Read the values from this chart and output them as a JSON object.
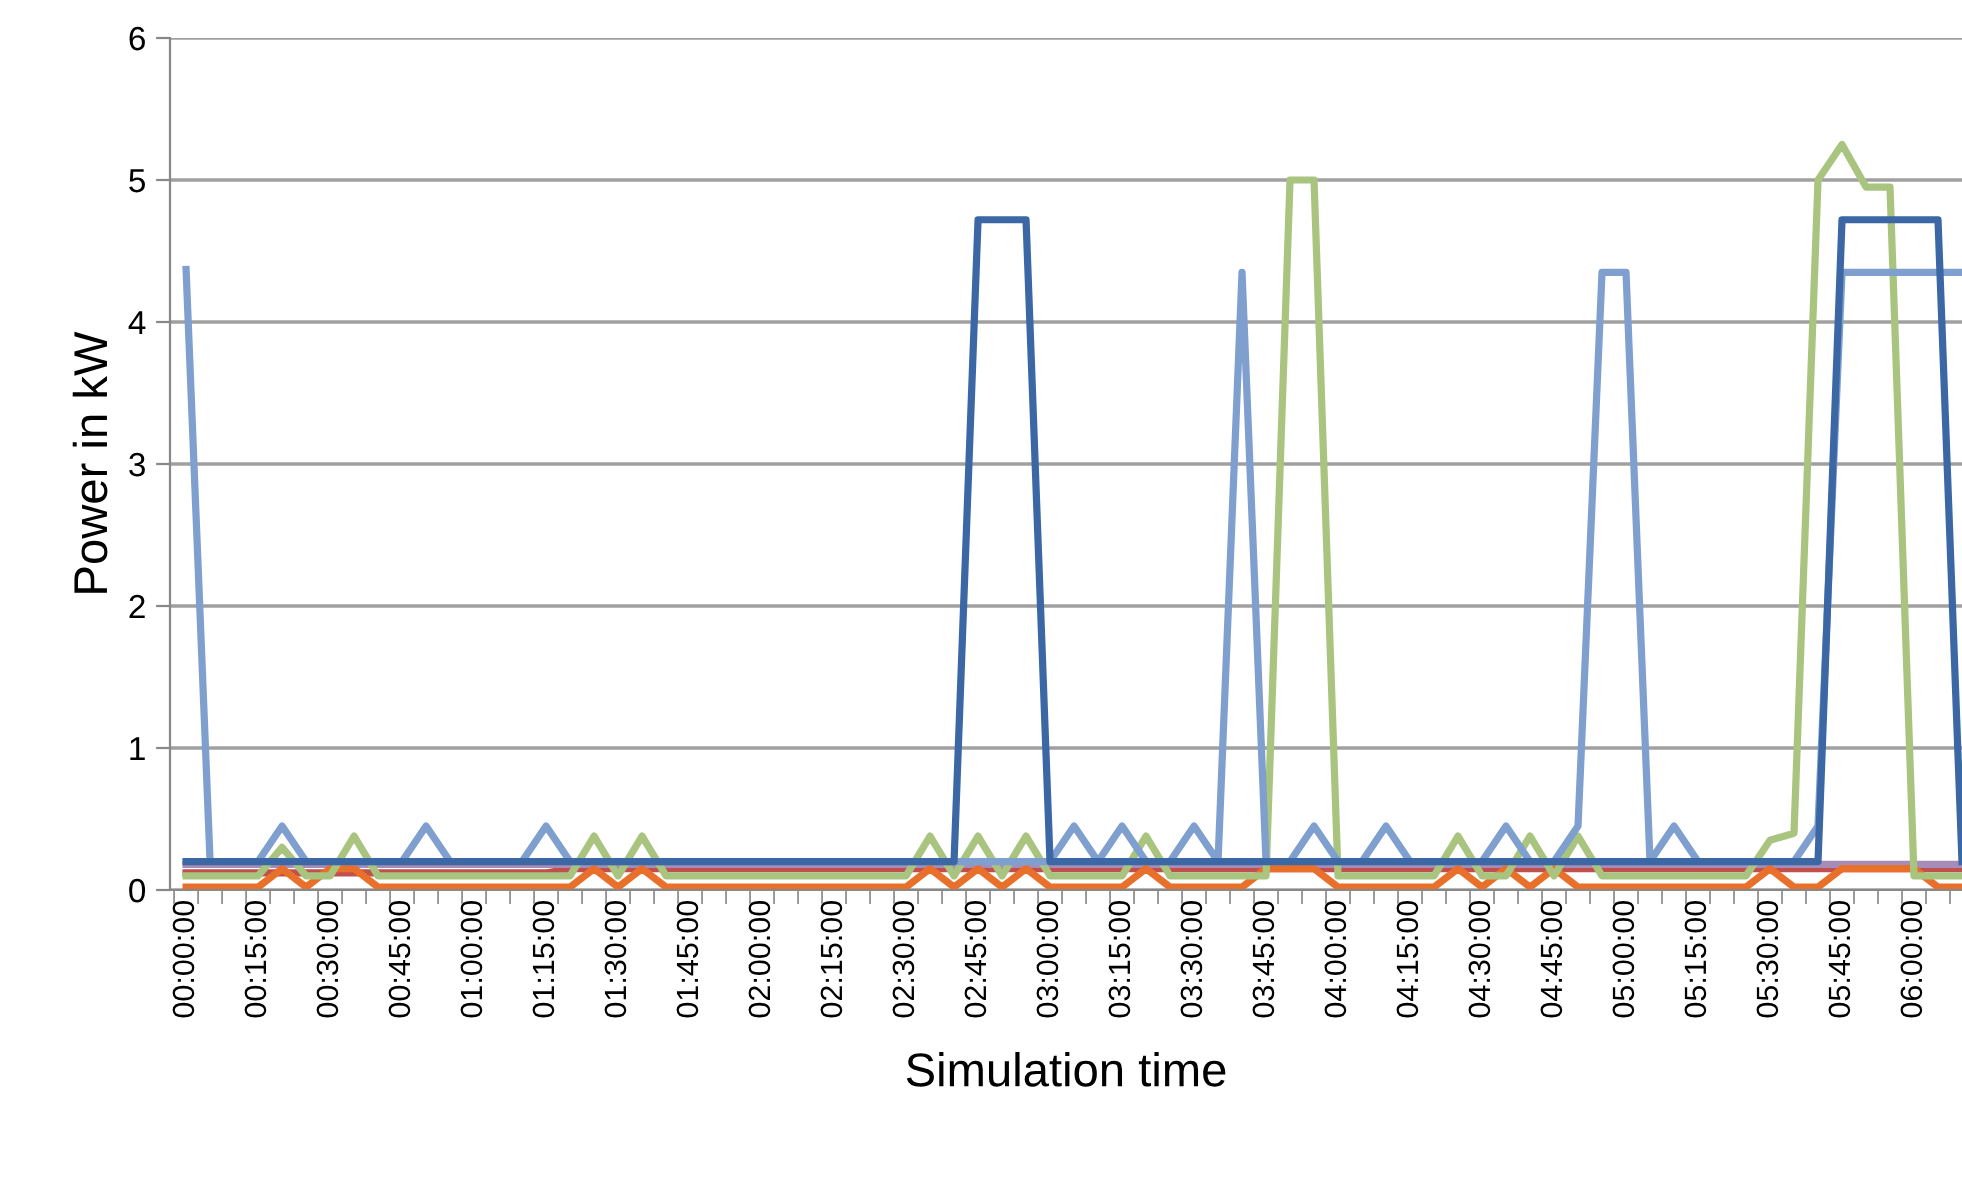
{
  "chart_data": {
    "type": "line",
    "xlabel": "Simulation time",
    "ylabel": "Power in kW",
    "categories": [
      "00:00:00",
      null,
      null,
      "00:15:00",
      null,
      null,
      "00:30:00",
      null,
      null,
      "00:45:00",
      null,
      null,
      "01:00:00",
      null,
      null,
      "01:15:00",
      null,
      null,
      "01:30:00",
      null,
      null,
      "01:45:00",
      null,
      null,
      "02:00:00",
      null,
      null,
      "02:15:00",
      null,
      null,
      "02:30:00",
      null,
      null,
      "02:45:00",
      null,
      null,
      "03:00:00",
      null,
      null,
      "03:15:00",
      null,
      null,
      "03:30:00",
      null,
      null,
      "03:45:00",
      null,
      null,
      "04:00:00",
      null,
      null,
      "04:15:00",
      null,
      null,
      "04:30:00",
      null,
      null,
      "04:45:00",
      null,
      null,
      "05:00:00",
      null,
      null,
      "05:15:00",
      null,
      null,
      "05:30:00",
      null,
      null,
      "05:45:00",
      null,
      null,
      "06:00:00",
      null,
      null
    ],
    "ylim": [
      0,
      6
    ],
    "yticks": [
      0,
      1,
      2,
      3,
      4,
      5,
      6
    ],
    "grid": "y",
    "marker": "none",
    "line_style": "solid",
    "series": [
      {
        "color": "#c0504d",
        "values": [
          0.12,
          0.12,
          0.12,
          0.12,
          0.12,
          0.12,
          0.12,
          0.12,
          0.12,
          0.12,
          0.12,
          0.12,
          0.12,
          0.12,
          0.12,
          0.12,
          0.15,
          0.15,
          0.15,
          0.15,
          0.15,
          0.15,
          0.15,
          0.15,
          0.15,
          0.15,
          0.15,
          0.15,
          0.15,
          0.15,
          0.15,
          0.15,
          0.15,
          0.15,
          0.15,
          0.15,
          0.15,
          0.15,
          0.15,
          0.15,
          0.15,
          0.15,
          0.15,
          0.15,
          0.15,
          0.15,
          0.15,
          0.15,
          0.15,
          0.15,
          0.15,
          0.15,
          0.15,
          0.15,
          0.15,
          0.15,
          0.15,
          0.15,
          0.15,
          0.15,
          0.15,
          0.15,
          0.15,
          0.15,
          0.15,
          0.15,
          0.15,
          0.15,
          0.15,
          0.15,
          0.15,
          0.15,
          0.15,
          0.15,
          0.15
        ]
      },
      {
        "color": "#a88cb8",
        "values": [
          0.18,
          0.18,
          0.18,
          0.18,
          0.18,
          0.18,
          0.18,
          0.18,
          0.18,
          0.18,
          0.18,
          0.18,
          0.18,
          0.18,
          0.18,
          0.18,
          0.18,
          0.18,
          0.18,
          0.18,
          0.18,
          0.18,
          0.18,
          0.18,
          0.18,
          0.18,
          0.18,
          0.18,
          0.18,
          0.18,
          0.18,
          0.18,
          0.18,
          0.18,
          0.18,
          0.18,
          0.18,
          0.18,
          0.18,
          0.18,
          0.18,
          0.18,
          0.18,
          0.18,
          0.18,
          0.18,
          0.18,
          0.18,
          0.18,
          0.18,
          0.18,
          0.18,
          0.18,
          0.18,
          0.18,
          0.18,
          0.18,
          0.18,
          0.18,
          0.18,
          0.18,
          0.18,
          0.18,
          0.18,
          0.18,
          0.18,
          0.18,
          0.18,
          0.18,
          0.18,
          0.18,
          0.18,
          0.18,
          0.18,
          0.18
        ]
      },
      {
        "color": "#e8702a",
        "values": [
          0.02,
          0.02,
          0.02,
          0.02,
          0.15,
          0.02,
          0.15,
          0.15,
          0.02,
          0.02,
          0.02,
          0.02,
          0.02,
          0.02,
          0.02,
          0.02,
          0.02,
          0.15,
          0.02,
          0.15,
          0.02,
          0.02,
          0.02,
          0.02,
          0.02,
          0.02,
          0.02,
          0.02,
          0.02,
          0.02,
          0.02,
          0.15,
          0.02,
          0.15,
          0.02,
          0.15,
          0.02,
          0.02,
          0.02,
          0.02,
          0.15,
          0.02,
          0.02,
          0.02,
          0.02,
          0.15,
          0.15,
          0.15,
          0.02,
          0.02,
          0.02,
          0.02,
          0.02,
          0.15,
          0.02,
          0.15,
          0.02,
          0.15,
          0.02,
          0.02,
          0.02,
          0.02,
          0.02,
          0.02,
          0.02,
          0.02,
          0.15,
          0.02,
          0.02,
          0.15,
          0.15,
          0.15,
          0.15,
          0.02,
          0.02
        ]
      },
      {
        "color": "#a9c47f",
        "values": [
          0.1,
          0.1,
          0.1,
          0.1,
          0.3,
          0.1,
          0.1,
          0.38,
          0.1,
          0.1,
          0.1,
          0.1,
          0.1,
          0.1,
          0.1,
          0.1,
          0.1,
          0.38,
          0.1,
          0.38,
          0.1,
          0.1,
          0.1,
          0.1,
          0.1,
          0.1,
          0.1,
          0.1,
          0.1,
          0.1,
          0.1,
          0.38,
          0.1,
          0.38,
          0.1,
          0.38,
          0.1,
          0.1,
          0.1,
          0.1,
          0.38,
          0.1,
          0.1,
          0.1,
          0.1,
          0.1,
          5.0,
          5.0,
          0.1,
          0.1,
          0.1,
          0.1,
          0.1,
          0.38,
          0.1,
          0.1,
          0.38,
          0.1,
          0.38,
          0.1,
          0.1,
          0.1,
          0.1,
          0.1,
          0.1,
          0.1,
          0.35,
          0.4,
          5.0,
          5.25,
          4.95,
          4.95,
          0.1,
          0.1,
          0.1
        ]
      },
      {
        "color": "#7f9fcf",
        "values": [
          4.37,
          0.2,
          0.2,
          0.2,
          0.45,
          0.2,
          0.2,
          0.2,
          0.2,
          0.2,
          0.45,
          0.2,
          0.2,
          0.2,
          0.2,
          0.45,
          0.2,
          0.2,
          0.2,
          0.2,
          0.2,
          0.2,
          0.2,
          0.2,
          0.2,
          0.2,
          0.2,
          0.2,
          0.2,
          0.2,
          0.2,
          0.2,
          0.2,
          0.2,
          0.2,
          0.2,
          0.2,
          0.45,
          0.2,
          0.45,
          0.2,
          0.2,
          0.45,
          0.2,
          4.35,
          0.2,
          0.2,
          0.45,
          0.2,
          0.2,
          0.45,
          0.2,
          0.2,
          0.2,
          0.2,
          0.45,
          0.2,
          0.2,
          0.45,
          4.35,
          4.35,
          0.2,
          0.45,
          0.2,
          0.2,
          0.2,
          0.2,
          0.2,
          0.45,
          4.35,
          4.35,
          4.35,
          4.35,
          4.35,
          4.35
        ]
      },
      {
        "color": "#3b67a5",
        "values": [
          0.2,
          0.2,
          0.2,
          0.2,
          0.2,
          0.2,
          0.2,
          0.2,
          0.2,
          0.2,
          0.2,
          0.2,
          0.2,
          0.2,
          0.2,
          0.2,
          0.2,
          0.2,
          0.2,
          0.2,
          0.2,
          0.2,
          0.2,
          0.2,
          0.2,
          0.2,
          0.2,
          0.2,
          0.2,
          0.2,
          0.2,
          0.2,
          0.2,
          4.72,
          4.72,
          4.72,
          0.2,
          0.2,
          0.2,
          0.2,
          0.2,
          0.2,
          0.2,
          0.2,
          0.2,
          0.2,
          0.2,
          0.2,
          0.2,
          0.2,
          0.2,
          0.2,
          0.2,
          0.2,
          0.2,
          0.2,
          0.2,
          0.2,
          0.2,
          0.2,
          0.2,
          0.2,
          0.2,
          0.2,
          0.2,
          0.2,
          0.2,
          0.2,
          0.2,
          4.72,
          4.72,
          4.72,
          4.72,
          4.72,
          0.2
        ]
      }
    ]
  }
}
